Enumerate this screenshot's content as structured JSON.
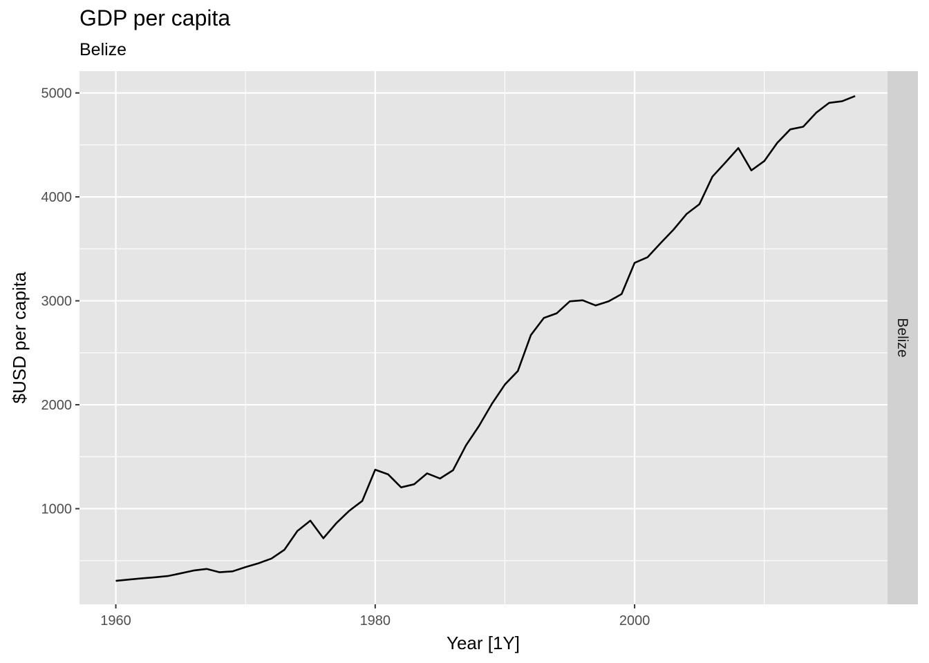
{
  "chart_data": {
    "type": "line",
    "title": "GDP per capita",
    "subtitle": "Belize",
    "xlabel": "Year [1Y]",
    "ylabel": "$USD per capita",
    "facet_label": "Belize",
    "xlim": [
      1957.2,
      2019.5
    ],
    "ylim": [
      80,
      5210
    ],
    "x_ticks": [
      1960,
      1980,
      2000
    ],
    "y_ticks": [
      1000,
      2000,
      3000,
      4000,
      5000
    ],
    "grid": true,
    "colors": {
      "panel": "#e5e5e5",
      "grid": "#ffffff",
      "strip": "#d1d1d1",
      "line": "#000000",
      "tick_text": "#4d4d4d"
    },
    "series": [
      {
        "x": [
          1960,
          1961,
          1962,
          1963,
          1964,
          1965,
          1966,
          1967,
          1968,
          1969,
          1970,
          1971,
          1972,
          1973,
          1974,
          1975,
          1976,
          1977,
          1978,
          1979,
          1980,
          1981,
          1982,
          1983,
          1984,
          1985,
          1986,
          1987,
          1988,
          1989,
          1990,
          1991,
          1992,
          1993,
          1994,
          1995,
          1996,
          1997,
          1998,
          1999,
          2000,
          2001,
          2002,
          2003,
          2004,
          2005,
          2006,
          2007,
          2008,
          2009,
          2010,
          2011,
          2012,
          2013,
          2014,
          2015,
          2016,
          2017
        ],
        "y": [
          305,
          318,
          330,
          340,
          352,
          378,
          405,
          420,
          388,
          397,
          438,
          475,
          520,
          605,
          785,
          885,
          715,
          860,
          980,
          1075,
          1375,
          1330,
          1205,
          1235,
          1340,
          1290,
          1370,
          1610,
          1795,
          2010,
          2195,
          2325,
          2670,
          2835,
          2880,
          2995,
          3005,
          2955,
          2995,
          3065,
          3365,
          3420,
          3555,
          3685,
          3835,
          3930,
          4195,
          4330,
          4470,
          4255,
          4345,
          4520,
          4650,
          4675,
          4810,
          4905,
          4920,
          4970
        ]
      }
    ]
  }
}
